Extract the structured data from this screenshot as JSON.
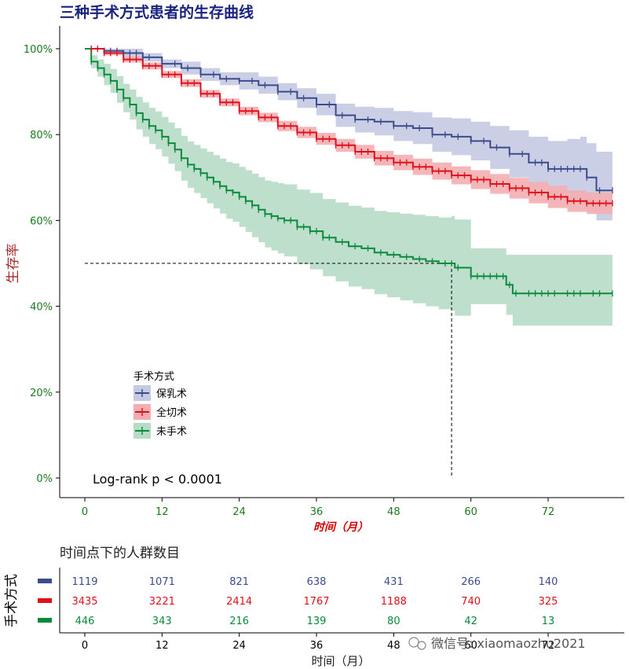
{
  "title": "三种手术方式患者的生存曲线",
  "watermark_text": "微信号: xiaomaozhu2021",
  "chart_data": {
    "type": "line",
    "subtype": "kaplan-meier",
    "title": "三种手术方式患者的生存曲线",
    "xlabel": "时间（月）",
    "ylabel": "生存率",
    "xlim": [
      -3,
      84
    ],
    "ylim": [
      -0.05,
      1.05
    ],
    "x_ticks": [
      0,
      12,
      24,
      36,
      48,
      60,
      72
    ],
    "x_tick_labels": [
      "0",
      "12",
      "24",
      "36",
      "48",
      "60",
      "72"
    ],
    "y_ticks": [
      0,
      0.2,
      0.4,
      0.6,
      0.8,
      1.0
    ],
    "y_tick_labels": [
      "0%",
      "20%",
      "40%",
      "60%",
      "80%",
      "100%"
    ],
    "legend": {
      "title": "手术方式",
      "position": "bottom-left",
      "labels": [
        "保乳术",
        "全切术",
        "未手术"
      ]
    },
    "annotation": "Log-rank   p < 0.0001",
    "median_line": {
      "x": 57,
      "y": 0.5
    },
    "series": [
      {
        "name": "保乳术",
        "color": "#3c4b8c",
        "fill": "#c5cae3",
        "times": [
          0,
          3,
          6,
          9,
          12,
          15,
          18,
          21,
          24,
          27,
          30,
          33,
          36,
          39,
          42,
          45,
          48,
          51,
          54,
          57,
          60,
          63,
          66,
          69,
          72,
          75,
          77,
          78,
          79.5,
          82
        ],
        "surv": [
          1.0,
          0.995,
          0.99,
          0.98,
          0.965,
          0.955,
          0.94,
          0.93,
          0.925,
          0.915,
          0.9,
          0.885,
          0.87,
          0.845,
          0.835,
          0.83,
          0.82,
          0.815,
          0.8,
          0.795,
          0.785,
          0.77,
          0.755,
          0.735,
          0.72,
          0.72,
          0.72,
          0.7,
          0.67,
          0.67
        ],
        "lower": [
          1.0,
          0.99,
          0.98,
          0.97,
          0.955,
          0.94,
          0.925,
          0.915,
          0.905,
          0.895,
          0.88,
          0.862,
          0.845,
          0.818,
          0.805,
          0.798,
          0.785,
          0.778,
          0.76,
          0.752,
          0.74,
          0.72,
          0.7,
          0.675,
          0.655,
          0.65,
          0.645,
          0.62,
          0.6,
          0.595
        ],
        "upper": [
          1.0,
          1.0,
          1.0,
          0.99,
          0.975,
          0.97,
          0.955,
          0.945,
          0.945,
          0.935,
          0.92,
          0.908,
          0.895,
          0.872,
          0.865,
          0.862,
          0.855,
          0.852,
          0.84,
          0.838,
          0.83,
          0.82,
          0.81,
          0.795,
          0.785,
          0.79,
          0.795,
          0.78,
          0.76,
          0.75
        ],
        "censor_times": [
          1,
          2,
          3,
          4,
          5,
          6,
          7,
          8,
          9,
          10,
          12,
          14,
          16,
          18,
          20,
          22,
          24,
          26,
          28,
          30,
          32,
          34,
          36,
          38,
          40,
          42,
          44,
          46,
          48,
          50,
          52,
          54,
          56,
          58,
          60,
          62,
          64,
          66,
          68,
          70,
          71,
          72,
          73,
          74,
          75,
          76,
          77,
          78,
          80,
          82
        ]
      },
      {
        "name": "全切术",
        "color": "#e0101a",
        "fill": "#f4aeb1",
        "times": [
          0,
          3,
          6,
          9,
          12,
          15,
          18,
          21,
          24,
          27,
          30,
          33,
          36,
          39,
          42,
          45,
          48,
          51,
          54,
          57,
          60,
          63,
          66,
          69,
          72,
          75,
          78,
          82
        ],
        "surv": [
          1.0,
          0.99,
          0.975,
          0.96,
          0.94,
          0.92,
          0.895,
          0.875,
          0.855,
          0.84,
          0.82,
          0.805,
          0.79,
          0.775,
          0.76,
          0.745,
          0.735,
          0.725,
          0.715,
          0.705,
          0.695,
          0.685,
          0.675,
          0.665,
          0.655,
          0.645,
          0.64,
          0.64
        ],
        "lower": [
          1.0,
          0.985,
          0.968,
          0.952,
          0.932,
          0.911,
          0.886,
          0.866,
          0.845,
          0.829,
          0.808,
          0.792,
          0.776,
          0.76,
          0.744,
          0.728,
          0.717,
          0.706,
          0.695,
          0.684,
          0.673,
          0.662,
          0.651,
          0.64,
          0.629,
          0.62,
          0.615,
          0.615
        ],
        "upper": [
          1.0,
          0.995,
          0.982,
          0.968,
          0.948,
          0.929,
          0.904,
          0.884,
          0.865,
          0.851,
          0.832,
          0.818,
          0.804,
          0.79,
          0.776,
          0.762,
          0.753,
          0.744,
          0.735,
          0.726,
          0.717,
          0.708,
          0.699,
          0.69,
          0.681,
          0.67,
          0.665,
          0.665
        ],
        "censor_times": [
          1,
          2,
          3,
          4,
          5,
          6,
          7,
          8,
          9,
          10,
          11,
          12,
          13,
          14,
          15,
          16,
          17,
          18,
          19,
          20,
          21,
          22,
          23,
          24,
          25,
          26,
          27,
          28,
          29,
          30,
          31,
          32,
          33,
          34,
          35,
          36,
          37,
          38,
          39,
          40,
          41,
          42,
          43,
          44,
          45,
          46,
          47,
          48,
          49,
          50,
          51,
          52,
          53,
          54,
          55,
          56,
          57,
          58,
          59,
          60,
          61,
          62,
          63,
          64,
          65,
          66,
          67,
          68,
          69,
          70,
          71,
          72,
          73,
          74,
          75,
          76,
          77,
          78,
          79,
          80,
          81,
          82
        ]
      },
      {
        "name": "未手术",
        "color": "#0a8a3c",
        "fill": "#b6dcc6",
        "times": [
          0,
          1,
          2,
          3,
          4,
          5,
          6,
          7,
          8,
          9,
          10,
          11,
          12,
          13,
          14,
          15,
          16,
          17,
          18,
          19,
          20,
          21,
          22,
          23,
          24,
          25,
          26,
          27,
          28,
          29,
          30,
          31,
          33,
          35,
          37,
          39,
          41,
          43,
          45,
          47,
          49,
          51,
          53,
          55,
          57,
          57.5,
          60,
          62,
          64,
          65.5,
          66.5,
          68,
          82
        ],
        "surv": [
          1.0,
          0.97,
          0.955,
          0.94,
          0.925,
          0.905,
          0.885,
          0.87,
          0.85,
          0.835,
          0.82,
          0.81,
          0.795,
          0.78,
          0.765,
          0.745,
          0.73,
          0.72,
          0.71,
          0.7,
          0.69,
          0.68,
          0.67,
          0.665,
          0.655,
          0.645,
          0.635,
          0.625,
          0.615,
          0.61,
          0.605,
          0.6,
          0.585,
          0.575,
          0.56,
          0.55,
          0.54,
          0.535,
          0.525,
          0.52,
          0.515,
          0.51,
          0.505,
          0.5,
          0.5,
          0.49,
          0.47,
          0.47,
          0.47,
          0.45,
          0.43,
          0.43,
          0.43
        ],
        "lower": [
          1.0,
          0.955,
          0.935,
          0.915,
          0.897,
          0.874,
          0.852,
          0.835,
          0.812,
          0.795,
          0.778,
          0.766,
          0.749,
          0.732,
          0.715,
          0.693,
          0.676,
          0.664,
          0.652,
          0.64,
          0.628,
          0.616,
          0.604,
          0.597,
          0.585,
          0.573,
          0.561,
          0.549,
          0.537,
          0.53,
          0.523,
          0.516,
          0.498,
          0.486,
          0.47,
          0.458,
          0.446,
          0.44,
          0.428,
          0.421,
          0.414,
          0.407,
          0.4,
          0.393,
          0.39,
          0.378,
          0.405,
          0.405,
          0.405,
          0.38,
          0.355,
          0.355,
          0.355
        ],
        "upper": [
          1.0,
          0.985,
          0.975,
          0.965,
          0.953,
          0.936,
          0.918,
          0.905,
          0.888,
          0.875,
          0.862,
          0.854,
          0.841,
          0.828,
          0.815,
          0.797,
          0.784,
          0.776,
          0.768,
          0.76,
          0.752,
          0.744,
          0.736,
          0.733,
          0.725,
          0.717,
          0.709,
          0.701,
          0.693,
          0.69,
          0.687,
          0.684,
          0.672,
          0.664,
          0.65,
          0.642,
          0.634,
          0.63,
          0.622,
          0.619,
          0.616,
          0.613,
          0.61,
          0.607,
          0.61,
          0.602,
          0.535,
          0.535,
          0.535,
          0.52,
          0.52,
          0.52,
          0.52
        ],
        "censor_times": [
          1,
          2,
          3,
          4,
          5,
          6,
          7,
          8,
          9,
          10,
          11,
          12,
          13,
          14,
          15,
          16,
          17,
          18,
          19,
          20,
          21,
          22,
          23,
          24,
          25,
          26,
          27,
          28,
          29,
          30,
          31,
          32,
          33,
          34,
          35,
          36,
          37,
          38,
          40,
          42,
          44,
          46,
          48,
          50,
          52,
          54,
          56,
          57,
          58,
          60,
          61,
          62,
          63,
          64,
          65,
          66,
          67,
          69,
          70,
          71,
          72,
          73,
          75,
          76,
          77,
          79,
          80,
          82
        ]
      }
    ]
  },
  "risk_table": {
    "title": "时间点下的人群数目",
    "ylabel": "手术方式",
    "xlabel": "时间（月）",
    "times": [
      "0",
      "12",
      "24",
      "36",
      "48",
      "60",
      "72"
    ],
    "rows": [
      {
        "name": "保乳术",
        "color": "#3c4b8c",
        "counts": [
          "1119",
          "1071",
          "821",
          "638",
          "431",
          "266",
          "140"
        ]
      },
      {
        "name": "全切术",
        "color": "#e0101a",
        "counts": [
          "3435",
          "3221",
          "2414",
          "1767",
          "1188",
          "740",
          "325"
        ]
      },
      {
        "name": "未手术",
        "color": "#0a8a3c",
        "counts": [
          "446",
          "343",
          "216",
          "139",
          "80",
          "42",
          "13"
        ]
      }
    ]
  }
}
